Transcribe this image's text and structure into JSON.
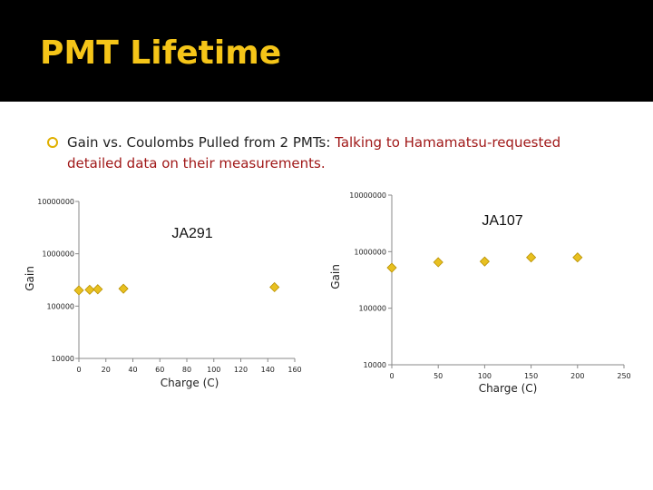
{
  "slide": {
    "title": "PMT Lifetime",
    "bullet_plain": "Gain vs. Coulombs Pulled from 2 PMTs: ",
    "bullet_highlight": "Talking to  Hamamatsu-requested detailed data on their measurements.",
    "colors": {
      "title": "#f5c518",
      "highlight": "#a01818",
      "marker": "#e8c020"
    }
  },
  "chart_data": [
    {
      "type": "scatter",
      "title": "JA291",
      "xlabel": "Charge (C)",
      "ylabel": "Gain",
      "xlim": [
        0,
        160
      ],
      "ylim": [
        10000,
        10000000
      ],
      "yscale": "log",
      "xticks": [
        "0",
        "20",
        "40",
        "60",
        "80",
        "100",
        "120",
        "140",
        "160"
      ],
      "yticks": [
        "10000",
        "100000",
        "1000000",
        "10000000"
      ],
      "points": [
        {
          "x": 0,
          "y": 200000
        },
        {
          "x": 8,
          "y": 205000
        },
        {
          "x": 14,
          "y": 210000
        },
        {
          "x": 33,
          "y": 215000
        },
        {
          "x": 145,
          "y": 230000
        }
      ],
      "grid": false,
      "marker": "diamond"
    },
    {
      "type": "scatter",
      "title": "JA107",
      "xlabel": "Charge (C)",
      "ylabel": "Gain",
      "xlim": [
        0,
        250
      ],
      "ylim": [
        10000,
        10000000
      ],
      "yscale": "log",
      "xticks": [
        "0",
        "50",
        "100",
        "150",
        "200",
        "250"
      ],
      "yticks": [
        "10000",
        "100000",
        "1000000",
        "10000000"
      ],
      "points": [
        {
          "x": 0,
          "y": 520000
        },
        {
          "x": 50,
          "y": 650000
        },
        {
          "x": 100,
          "y": 670000
        },
        {
          "x": 150,
          "y": 790000
        },
        {
          "x": 200,
          "y": 790000
        }
      ],
      "grid": false,
      "marker": "diamond"
    }
  ]
}
